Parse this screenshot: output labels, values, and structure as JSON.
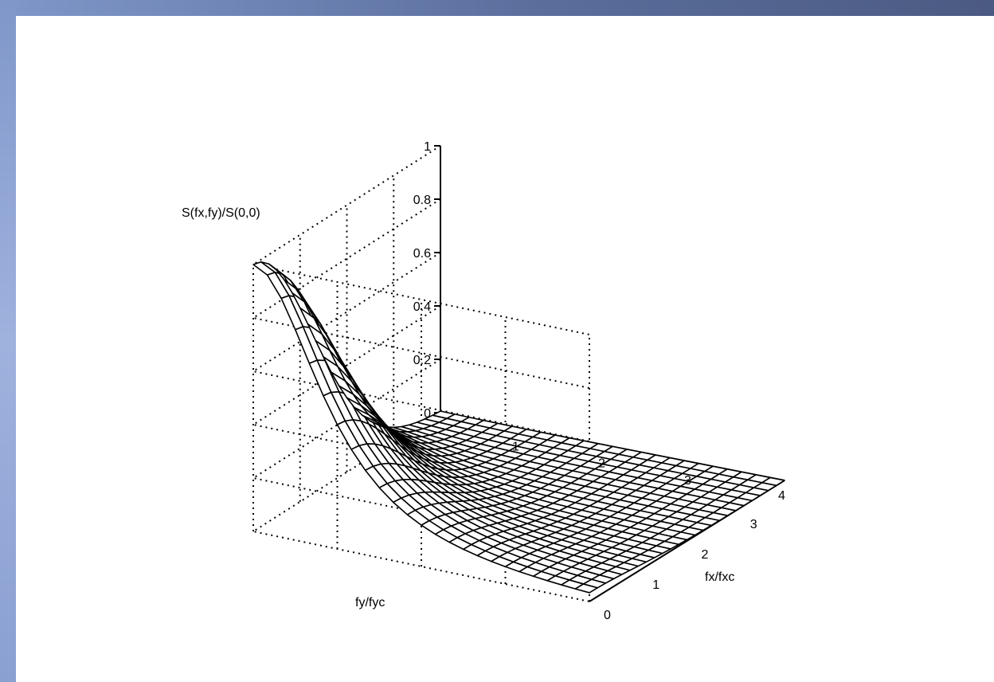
{
  "chart_data": {
    "type": "surface",
    "title": "",
    "zlabel": "S(fx,fy)/S(0,0)",
    "xlabel": "fy/fyc",
    "ylabel": "fx/fxc",
    "x_range": [
      0,
      4
    ],
    "y_range": [
      0,
      4
    ],
    "z_range": [
      0,
      1
    ],
    "x_ticks": [
      "1",
      "2",
      "3",
      "4"
    ],
    "y_ticks": [
      "0",
      "1",
      "2",
      "3"
    ],
    "z_ticks": [
      "0",
      "0.2",
      "0.4",
      "0.6",
      "0.8",
      "1"
    ],
    "grid": true,
    "mesh": {
      "x_steps": 24,
      "y_steps": 24
    },
    "surface": "peak value 1 at fy/fyc = 0, fx/fxc = 0, decaying toward 0 as fy/fyc and fx/fxc increase"
  }
}
